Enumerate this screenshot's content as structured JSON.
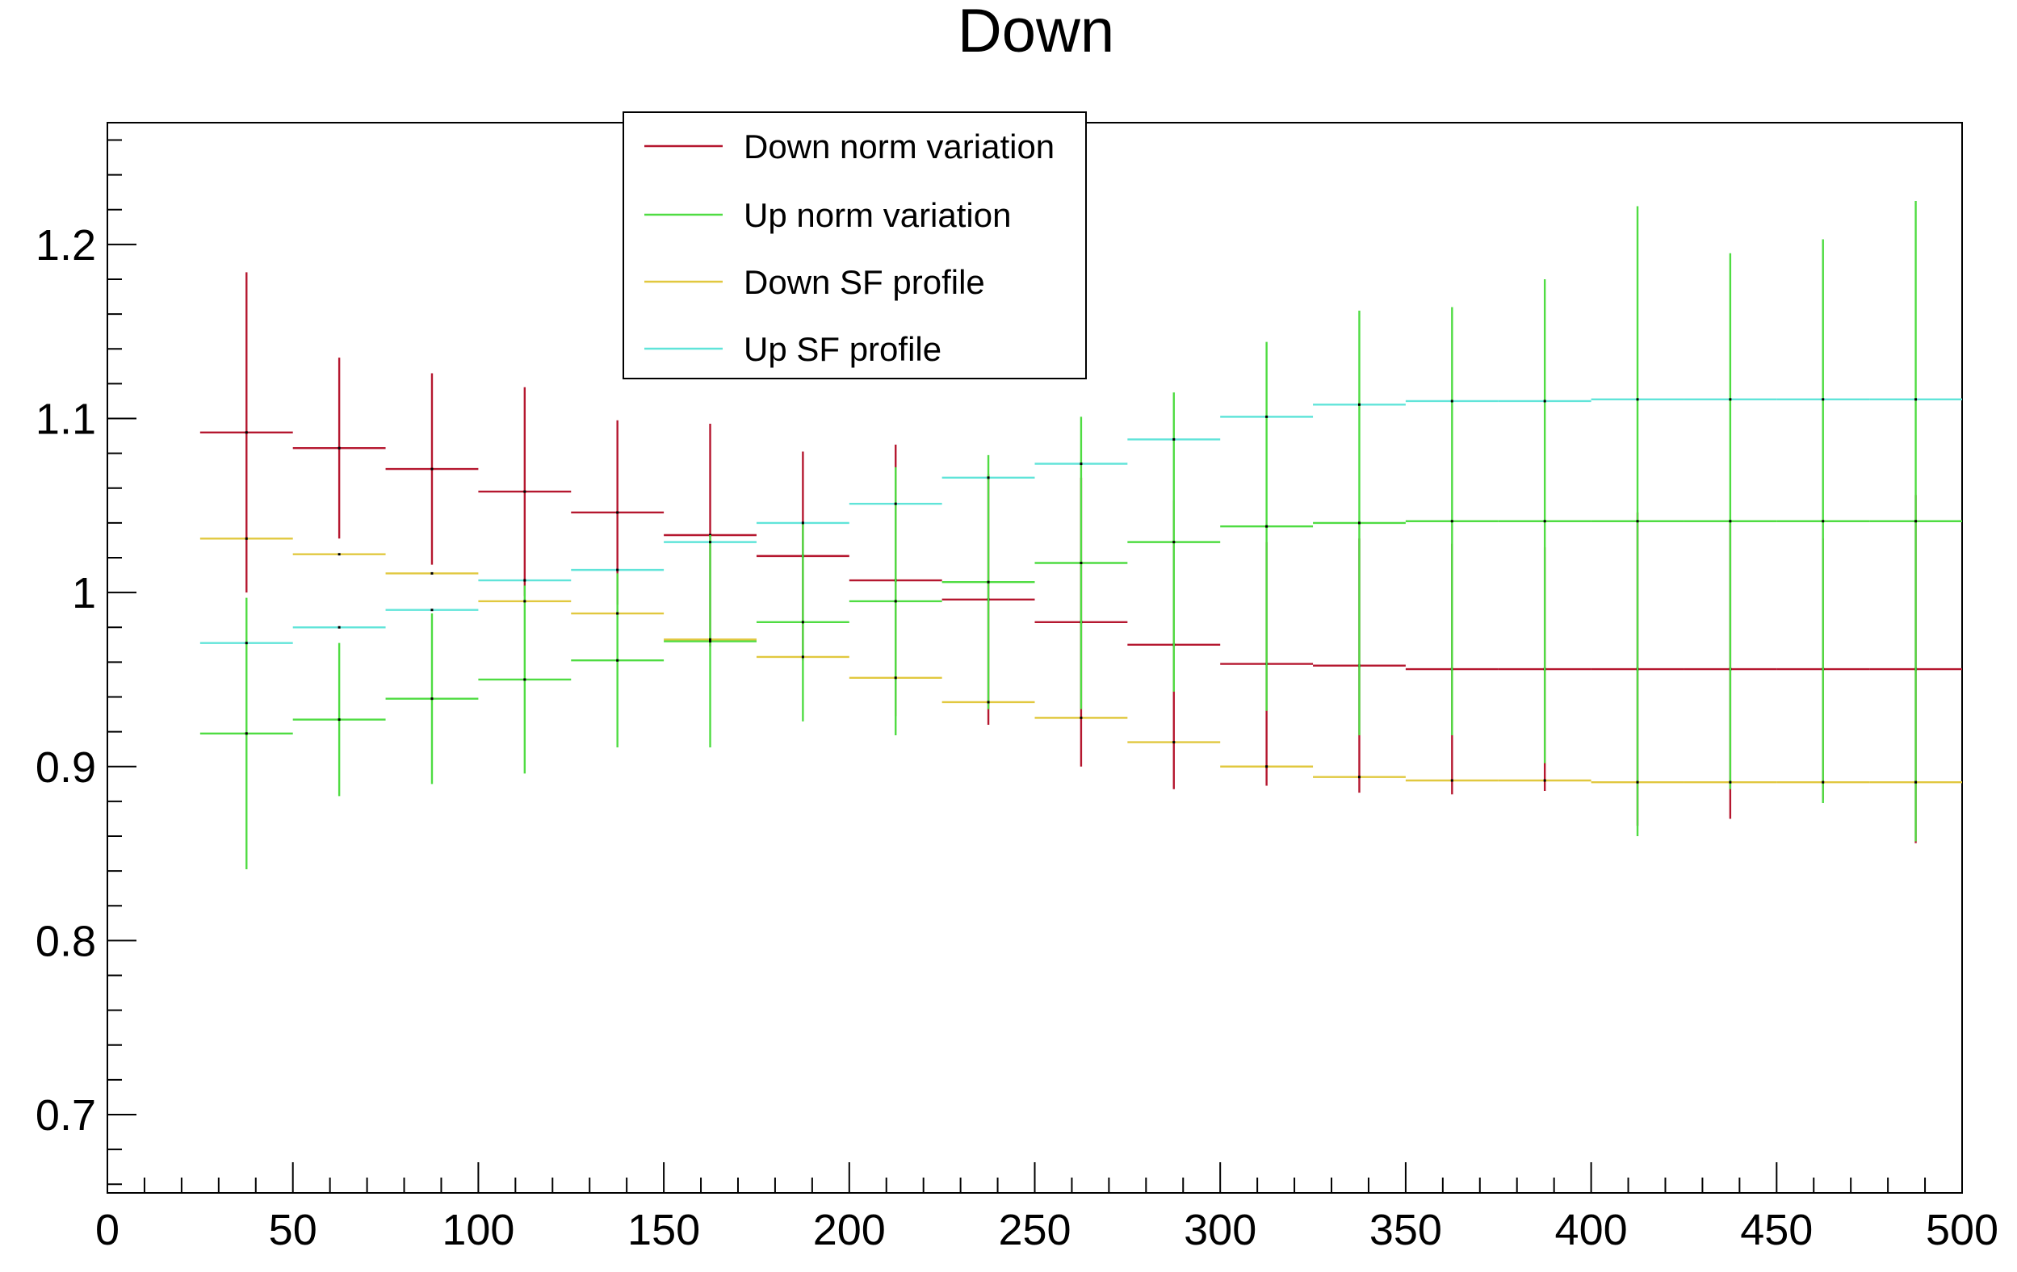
{
  "chart_data": {
    "type": "scatter",
    "title": "Down",
    "xlabel": "",
    "ylabel": "",
    "xlim": [
      0,
      500
    ],
    "ylim": [
      0.655,
      1.27
    ],
    "x_ticks": [
      0,
      50,
      100,
      150,
      200,
      250,
      300,
      350,
      400,
      450,
      500
    ],
    "x_tick_labels": [
      "0",
      "50",
      "100",
      "150",
      "200",
      "250",
      "300",
      "350",
      "400",
      "450",
      "500"
    ],
    "y_ticks": [
      0.7,
      0.8,
      0.9,
      1.0,
      1.1,
      1.2
    ],
    "y_tick_labels": [
      "0.7",
      "0.8",
      "0.9",
      "1",
      "1.1",
      "1.2"
    ],
    "grid": false,
    "legend_position": "top-center",
    "bin_edges": [
      25,
      50,
      75,
      100,
      125,
      150,
      175,
      200,
      225,
      250,
      275,
      300,
      325,
      350,
      375,
      400,
      425,
      450,
      475,
      500
    ],
    "series": [
      {
        "name": "Down norm variation",
        "color": "#b5172f",
        "values": [
          1.092,
          1.083,
          1.071,
          1.058,
          1.046,
          1.033,
          1.021,
          1.007,
          0.996,
          0.983,
          0.97,
          0.959,
          0.958,
          0.956,
          0.956,
          0.956,
          0.956,
          0.956,
          0.956
        ],
        "errors": [
          0.092,
          0.052,
          0.055,
          0.06,
          0.053,
          0.064,
          0.06,
          0.078,
          0.072,
          0.083,
          0.083,
          0.07,
          0.073,
          0.072,
          0.07,
          0.09,
          0.086,
          0.075,
          0.1
        ]
      },
      {
        "name": "Up norm variation",
        "color": "#4fdc42",
        "values": [
          0.919,
          0.927,
          0.939,
          0.95,
          0.961,
          0.972,
          0.983,
          0.995,
          1.006,
          1.017,
          1.029,
          1.038,
          1.04,
          1.041,
          1.041,
          1.041,
          1.041,
          1.041,
          1.041
        ],
        "errors": [
          0.078,
          0.044,
          0.049,
          0.054,
          0.05,
          0.061,
          0.057,
          0.077,
          0.073,
          0.084,
          0.086,
          0.106,
          0.122,
          0.123,
          0.139,
          0.181,
          0.154,
          0.162,
          0.184
        ]
      },
      {
        "name": "Down SF profile",
        "color": "#e1c83f",
        "values": [
          1.031,
          1.022,
          1.011,
          0.995,
          0.988,
          0.973,
          0.963,
          0.951,
          0.937,
          0.928,
          0.914,
          0.9,
          0.894,
          0.892,
          0.892,
          0.891,
          0.891,
          0.891,
          0.891
        ],
        "errors": [
          0,
          0,
          0,
          0,
          0,
          0,
          0,
          0,
          0,
          0,
          0,
          0,
          0,
          0,
          0,
          0,
          0,
          0,
          0
        ]
      },
      {
        "name": "Up SF profile",
        "color": "#60e4d9",
        "values": [
          0.971,
          0.98,
          0.99,
          1.007,
          1.013,
          1.029,
          1.04,
          1.051,
          1.066,
          1.074,
          1.088,
          1.101,
          1.108,
          1.11,
          1.11,
          1.111,
          1.111,
          1.111,
          1.111
        ],
        "errors": [
          0,
          0,
          0,
          0,
          0,
          0,
          0,
          0,
          0,
          0,
          0,
          0,
          0,
          0,
          0,
          0,
          0,
          0,
          0
        ]
      }
    ]
  }
}
